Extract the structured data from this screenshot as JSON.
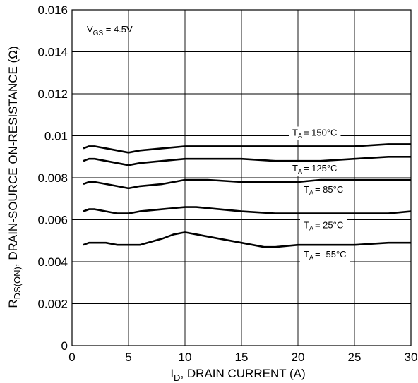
{
  "chart_data": {
    "type": "line",
    "title": "",
    "xlabel": {
      "main": "I",
      "sub": "D",
      "rest": ", DRAIN CURRENT (A)"
    },
    "ylabel": {
      "main": "R",
      "sub": "DS(ON)",
      "rest": ", DRAIN-SOURCE ON-RESISTANCE (Ω)"
    },
    "xlim": [
      0,
      30
    ],
    "ylim": [
      0,
      0.016
    ],
    "xticks": [
      0,
      5,
      10,
      15,
      20,
      25,
      30
    ],
    "xtick_labels": [
      "0",
      "5",
      "10",
      "15",
      "20",
      "25",
      "30"
    ],
    "yticks": [
      0,
      0.002,
      0.004,
      0.006,
      0.008,
      0.01,
      0.012,
      0.014,
      0.016
    ],
    "ytick_labels": [
      "0",
      "0.002",
      "0.004",
      "0.006",
      "0.008",
      "0.01",
      "0.012",
      "0.014",
      "0.016"
    ],
    "grid": true,
    "condition": {
      "main": "V",
      "sub": "GS",
      "rest": " = 4.5V"
    },
    "series": [
      {
        "name": "T A = 150°C",
        "label_main": "T",
        "label_sub": "A",
        "label_rest": "= 150°C",
        "label_at": [
          19.5,
          0.01
        ],
        "x": [
          1,
          1.5,
          2,
          3,
          4,
          5,
          6,
          8,
          10,
          12,
          15,
          18,
          20,
          22,
          25,
          28,
          30
        ],
        "y": [
          0.0094,
          0.0095,
          0.0095,
          0.0094,
          0.0093,
          0.0092,
          0.0093,
          0.0094,
          0.0095,
          0.0095,
          0.0095,
          0.0095,
          0.0095,
          0.0095,
          0.0095,
          0.0096,
          0.0096
        ]
      },
      {
        "name": "T A = 125°C",
        "label_main": "T",
        "label_sub": "A",
        "label_rest": "= 125°C",
        "label_at": [
          19.5,
          0.0083
        ],
        "x": [
          1,
          1.5,
          2,
          3,
          4,
          5,
          6,
          8,
          10,
          12,
          15,
          18,
          20,
          22,
          25,
          28,
          30
        ],
        "y": [
          0.0088,
          0.0089,
          0.0089,
          0.0088,
          0.0087,
          0.0086,
          0.0087,
          0.0088,
          0.0089,
          0.0089,
          0.0089,
          0.0088,
          0.0088,
          0.0088,
          0.0089,
          0.009,
          0.009
        ]
      },
      {
        "name": "T A = 85°C",
        "label_main": "T",
        "label_sub": "A",
        "label_rest": "= 85°C",
        "label_at": [
          20.5,
          0.0073
        ],
        "x": [
          1,
          1.5,
          2,
          3,
          4,
          5,
          6,
          8,
          10,
          12,
          15,
          18,
          20,
          22,
          25,
          28,
          30
        ],
        "y": [
          0.0077,
          0.0078,
          0.0078,
          0.0077,
          0.0076,
          0.0075,
          0.0076,
          0.0077,
          0.0079,
          0.0079,
          0.0078,
          0.0078,
          0.0078,
          0.0079,
          0.0079,
          0.0079,
          0.0079
        ]
      },
      {
        "name": "T A = 25°C",
        "label_main": "T",
        "label_sub": "A",
        "label_rest": "= 25°C",
        "label_at": [
          20.5,
          0.0056
        ],
        "x": [
          1,
          1.5,
          2,
          3,
          4,
          5,
          6,
          8,
          10,
          11,
          13,
          15,
          18,
          20,
          22,
          25,
          28,
          30
        ],
        "y": [
          0.0064,
          0.0065,
          0.0065,
          0.0064,
          0.0063,
          0.0063,
          0.0064,
          0.0065,
          0.0066,
          0.0066,
          0.0065,
          0.0064,
          0.0063,
          0.0063,
          0.0063,
          0.0063,
          0.0063,
          0.0064
        ]
      },
      {
        "name": "T A = -55°C",
        "label_main": "T",
        "label_sub": "A",
        "label_rest": "= -55°C",
        "label_at": [
          20.5,
          0.0042
        ],
        "x": [
          1,
          1.5,
          2,
          3,
          4,
          5,
          6,
          8,
          9,
          10,
          11,
          13,
          15,
          16,
          17,
          18,
          20,
          22,
          25,
          28,
          30
        ],
        "y": [
          0.0048,
          0.0049,
          0.0049,
          0.0049,
          0.0048,
          0.0048,
          0.0048,
          0.0051,
          0.0053,
          0.0054,
          0.0053,
          0.0051,
          0.0049,
          0.0048,
          0.0047,
          0.0047,
          0.0048,
          0.0048,
          0.0048,
          0.0049,
          0.0049
        ]
      }
    ]
  }
}
